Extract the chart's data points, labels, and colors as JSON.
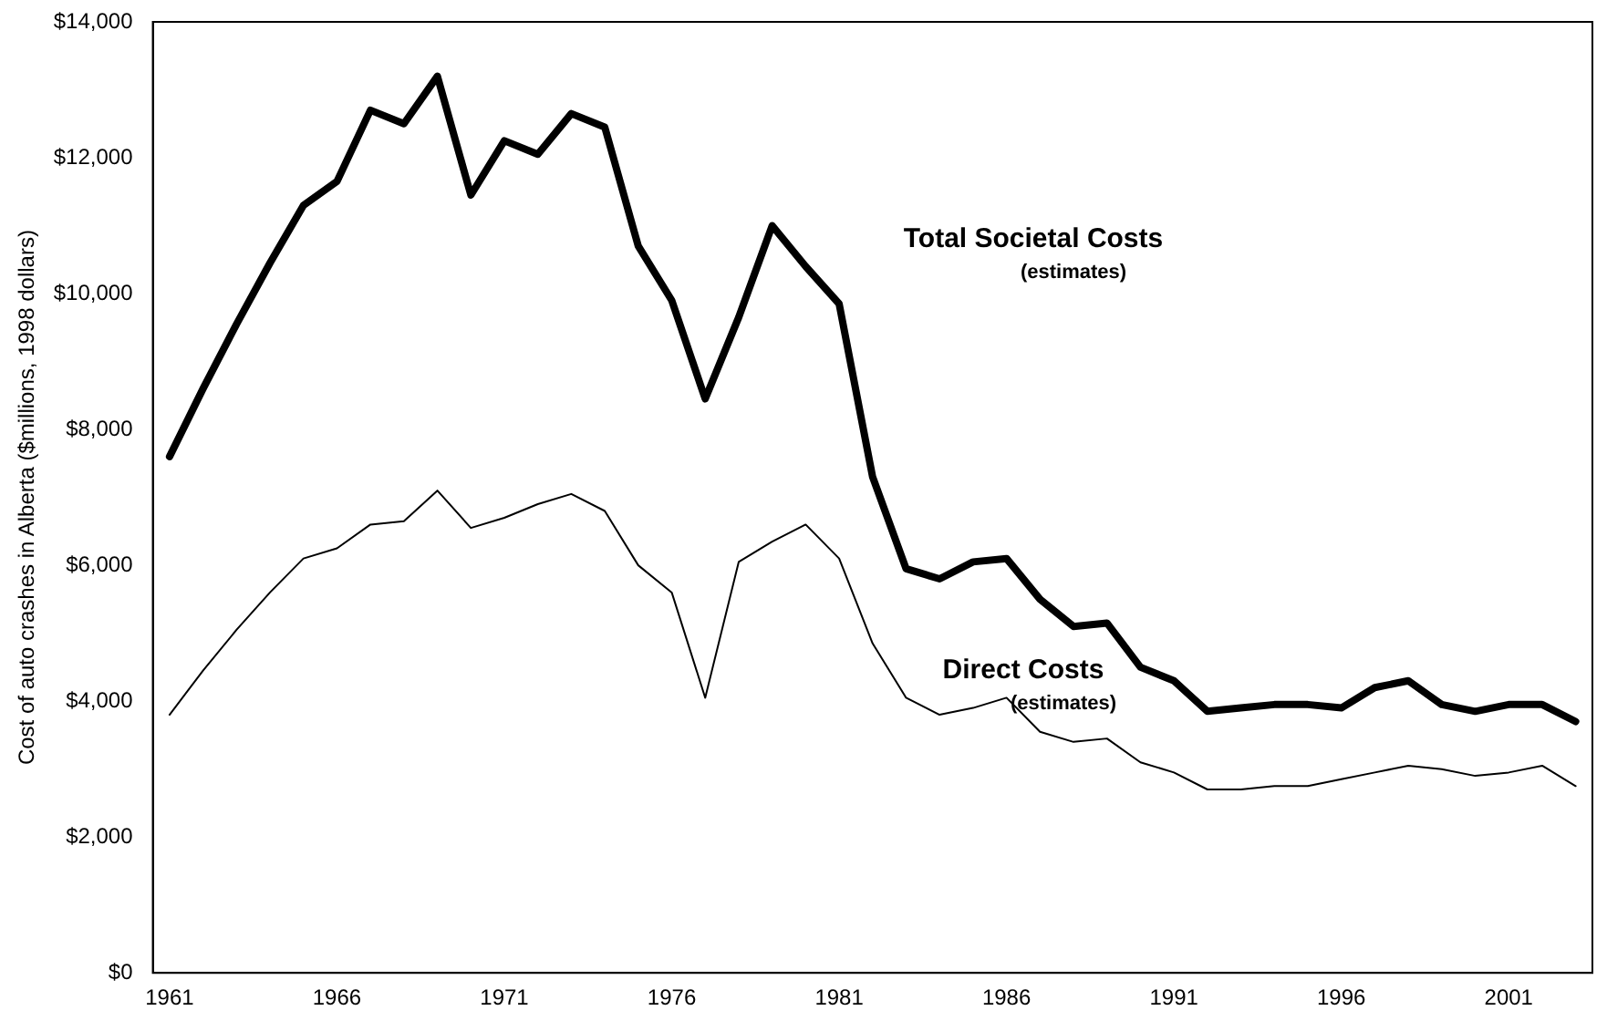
{
  "chart_data": {
    "type": "line",
    "categories": [
      "1961",
      null,
      null,
      null,
      null,
      "1966",
      null,
      null,
      null,
      null,
      "1971",
      null,
      null,
      null,
      null,
      "1976",
      null,
      null,
      null,
      null,
      "1981",
      null,
      null,
      null,
      null,
      "1986",
      null,
      null,
      null,
      null,
      "1991",
      null,
      null,
      null,
      null,
      "1996",
      null,
      null,
      null,
      null,
      "2001",
      null,
      null
    ],
    "series": [
      {
        "name": "Total Societal Costs",
        "color": "#000000",
        "values": [
          7600,
          8600,
          9550,
          10450,
          11300,
          11650,
          12700,
          12500,
          13200,
          11450,
          12250,
          12050,
          12650,
          12450,
          10700,
          9900,
          8450,
          9650,
          11000,
          10400,
          9850,
          7300,
          5950,
          5800,
          6050,
          6100,
          5500,
          5100,
          5150,
          4500,
          4300,
          3850,
          3900,
          3950,
          3950,
          3900,
          4200,
          4300,
          3950,
          3850,
          3950,
          3950,
          3700
        ]
      },
      {
        "name": "Direct Costs",
        "color": "#000000",
        "values": [
          3800,
          4450,
          5050,
          5600,
          6100,
          6250,
          6600,
          6650,
          7100,
          6550,
          6700,
          6900,
          7050,
          6800,
          6000,
          5600,
          4050,
          6050,
          6350,
          6600,
          6100,
          4850,
          4050,
          3800,
          3900,
          4050,
          3550,
          3400,
          3450,
          3100,
          2950,
          2700,
          2700,
          2750,
          2750,
          2850,
          2950,
          3050,
          3000,
          2900,
          2950,
          3050,
          2750
        ]
      }
    ],
    "ylabel": "Cost of auto crashes in Alberta ($millions, 1998 dollars)",
    "ylim": [
      0,
      14000
    ],
    "yticks": [
      {
        "value": 0,
        "label": "$0"
      },
      {
        "value": 2000,
        "label": "$2,000"
      },
      {
        "value": 4000,
        "label": "$4,000"
      },
      {
        "value": 6000,
        "label": "$6,000"
      },
      {
        "value": 8000,
        "label": "$8,000"
      },
      {
        "value": 10000,
        "label": "$10,000"
      },
      {
        "value": 12000,
        "label": "$12,000"
      },
      {
        "value": 14000,
        "label": "$14,000"
      }
    ],
    "annotations": [
      "(estimates)",
      "(estimates)"
    ],
    "grid": false,
    "legend": false,
    "marker": "none",
    "line_style": "solid"
  }
}
